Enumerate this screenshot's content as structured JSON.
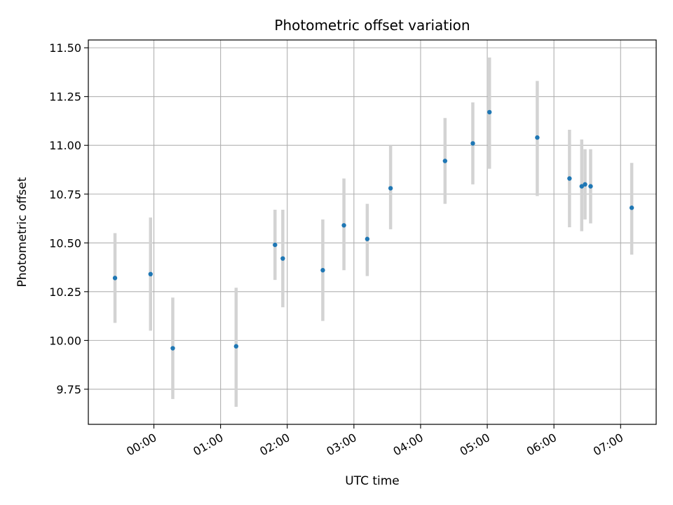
{
  "chart_data": {
    "type": "scatter",
    "title": "Photometric offset variation",
    "xlabel": "UTC time",
    "ylabel": "Photometric offset",
    "x_ticks": [
      "00:00",
      "01:00",
      "02:00",
      "03:00",
      "04:00",
      "05:00",
      "06:00",
      "07:00"
    ],
    "y_ticks": [
      "9.75",
      "10.00",
      "10.25",
      "10.50",
      "10.75",
      "11.00",
      "11.25",
      "11.50"
    ],
    "xlim": [
      "-00:59",
      "07:32"
    ],
    "ylim": [
      9.57,
      11.54
    ],
    "grid": true,
    "point_color": "#1f77b4",
    "errorbar_color": "#d3d3d3",
    "points": [
      {
        "x": "-00:35",
        "y": 10.32,
        "ylow": 10.09,
        "yhigh": 10.55
      },
      {
        "x": "-00:03",
        "y": 10.34,
        "ylow": 10.05,
        "yhigh": 10.63
      },
      {
        "x": "00:17",
        "y": 9.96,
        "ylow": 9.7,
        "yhigh": 10.22
      },
      {
        "x": "01:14",
        "y": 9.97,
        "ylow": 9.66,
        "yhigh": 10.27
      },
      {
        "x": "01:49",
        "y": 10.49,
        "ylow": 10.31,
        "yhigh": 10.67
      },
      {
        "x": "01:56",
        "y": 10.42,
        "ylow": 10.17,
        "yhigh": 10.67
      },
      {
        "x": "02:32",
        "y": 10.36,
        "ylow": 10.1,
        "yhigh": 10.62
      },
      {
        "x": "02:51",
        "y": 10.59,
        "ylow": 10.36,
        "yhigh": 10.83
      },
      {
        "x": "03:12",
        "y": 10.52,
        "ylow": 10.33,
        "yhigh": 10.7
      },
      {
        "x": "03:33",
        "y": 10.78,
        "ylow": 10.57,
        "yhigh": 11.0
      },
      {
        "x": "04:22",
        "y": 10.92,
        "ylow": 10.7,
        "yhigh": 11.14
      },
      {
        "x": "04:47",
        "y": 11.01,
        "ylow": 10.8,
        "yhigh": 11.22
      },
      {
        "x": "05:02",
        "y": 11.17,
        "ylow": 10.88,
        "yhigh": 11.45
      },
      {
        "x": "05:45",
        "y": 11.04,
        "ylow": 10.74,
        "yhigh": 11.33
      },
      {
        "x": "06:14",
        "y": 10.83,
        "ylow": 10.58,
        "yhigh": 11.08
      },
      {
        "x": "06:25",
        "y": 10.79,
        "ylow": 10.56,
        "yhigh": 11.03
      },
      {
        "x": "06:28",
        "y": 10.8,
        "ylow": 10.62,
        "yhigh": 10.98
      },
      {
        "x": "06:33",
        "y": 10.79,
        "ylow": 10.6,
        "yhigh": 10.98
      },
      {
        "x": "07:10",
        "y": 10.68,
        "ylow": 10.44,
        "yhigh": 10.91
      }
    ]
  }
}
